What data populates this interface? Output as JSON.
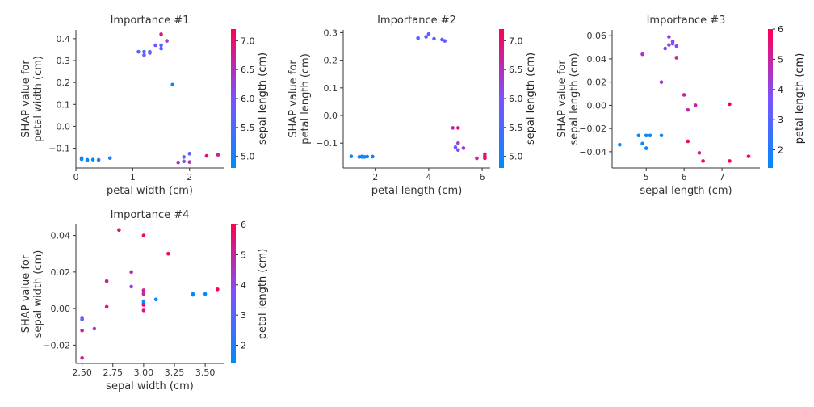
{
  "colors": {
    "low": "#008bfb",
    "mid": "#7c52ff",
    "high": "#ff0052",
    "axis": "#333333"
  },
  "chart_data": [
    {
      "type": "scatter",
      "title": "Importance #1",
      "xlabel": "petal width (cm)",
      "ylabel": [
        "SHAP value for",
        "petal width (cm)"
      ],
      "xlim": [
        0,
        2.6
      ],
      "ylim": [
        -0.19,
        0.44
      ],
      "xticks": [
        0,
        1,
        2
      ],
      "xtick_labels": [
        "0",
        "1",
        "2"
      ],
      "yticks": [
        -0.1,
        0.0,
        0.1,
        0.2,
        0.3,
        0.4
      ],
      "ytick_labels": [
        "−0.1",
        "0.0",
        "0.1",
        "0.2",
        "0.3",
        "0.4"
      ],
      "color_label": "sepal length (cm)",
      "color_range": [
        4.8,
        7.2
      ],
      "cticks": [
        5.0,
        5.5,
        6.0,
        6.5,
        7.0
      ],
      "ctick_labels": [
        "5.0",
        "5.5",
        "6.0",
        "6.5",
        "7.0"
      ],
      "points": [
        {
          "x": 0.1,
          "y": -0.145,
          "c": 4.9
        },
        {
          "x": 0.1,
          "y": -0.15,
          "c": 5.0
        },
        {
          "x": 0.2,
          "y": -0.153,
          "c": 4.9
        },
        {
          "x": 0.2,
          "y": -0.155,
          "c": 5.0
        },
        {
          "x": 0.3,
          "y": -0.152,
          "c": 4.8
        },
        {
          "x": 0.4,
          "y": -0.153,
          "c": 5.0
        },
        {
          "x": 0.6,
          "y": -0.145,
          "c": 5.0
        },
        {
          "x": 1.1,
          "y": 0.34,
          "c": 5.6
        },
        {
          "x": 1.2,
          "y": 0.34,
          "c": 5.7
        },
        {
          "x": 1.2,
          "y": 0.325,
          "c": 5.8
        },
        {
          "x": 1.3,
          "y": 0.34,
          "c": 5.6
        },
        {
          "x": 1.3,
          "y": 0.335,
          "c": 5.7
        },
        {
          "x": 1.4,
          "y": 0.37,
          "c": 5.8
        },
        {
          "x": 1.5,
          "y": 0.37,
          "c": 5.7
        },
        {
          "x": 1.5,
          "y": 0.355,
          "c": 5.6
        },
        {
          "x": 1.5,
          "y": 0.42,
          "c": 6.9
        },
        {
          "x": 1.6,
          "y": 0.39,
          "c": 6.3
        },
        {
          "x": 1.7,
          "y": 0.19,
          "c": 4.9
        },
        {
          "x": 1.8,
          "y": -0.165,
          "c": 6.4
        },
        {
          "x": 1.9,
          "y": -0.14,
          "c": 5.8
        },
        {
          "x": 1.9,
          "y": -0.16,
          "c": 6.0
        },
        {
          "x": 2.0,
          "y": -0.125,
          "c": 5.7
        },
        {
          "x": 2.0,
          "y": -0.163,
          "c": 6.5
        },
        {
          "x": 2.3,
          "y": -0.135,
          "c": 6.9
        },
        {
          "x": 2.5,
          "y": -0.13,
          "c": 6.7
        }
      ]
    },
    {
      "type": "scatter",
      "title": "Importance #2",
      "xlabel": "petal length (cm)",
      "ylabel": [
        "SHAP value for",
        "petal length (cm)"
      ],
      "xlim": [
        0.8,
        6.3
      ],
      "ylim": [
        -0.19,
        0.31
      ],
      "xticks": [
        2,
        4,
        6
      ],
      "xtick_labels": [
        "2",
        "4",
        "6"
      ],
      "yticks": [
        -0.1,
        0.0,
        0.1,
        0.2,
        0.3
      ],
      "ytick_labels": [
        "−0.1",
        "0.0",
        "0.1",
        "0.2",
        "0.3"
      ],
      "color_label": "sepal length (cm)",
      "color_range": [
        4.8,
        7.2
      ],
      "cticks": [
        5.0,
        5.5,
        6.0,
        6.5,
        7.0
      ],
      "ctick_labels": [
        "5.0",
        "5.5",
        "6.0",
        "6.5",
        "7.0"
      ],
      "points": [
        {
          "x": 1.1,
          "y": -0.148,
          "c": 4.9
        },
        {
          "x": 1.4,
          "y": -0.15,
          "c": 5.0
        },
        {
          "x": 1.5,
          "y": -0.148,
          "c": 4.9
        },
        {
          "x": 1.6,
          "y": -0.15,
          "c": 5.0
        },
        {
          "x": 1.5,
          "y": -0.15,
          "c": 5.0
        },
        {
          "x": 1.7,
          "y": -0.149,
          "c": 4.8
        },
        {
          "x": 1.9,
          "y": -0.149,
          "c": 5.0
        },
        {
          "x": 3.6,
          "y": 0.28,
          "c": 5.6
        },
        {
          "x": 3.9,
          "y": 0.285,
          "c": 5.7
        },
        {
          "x": 4.0,
          "y": 0.295,
          "c": 5.8
        },
        {
          "x": 4.2,
          "y": 0.278,
          "c": 5.7
        },
        {
          "x": 4.5,
          "y": 0.275,
          "c": 5.6
        },
        {
          "x": 4.6,
          "y": 0.27,
          "c": 5.8
        },
        {
          "x": 4.9,
          "y": -0.045,
          "c": 6.6
        },
        {
          "x": 5.0,
          "y": -0.115,
          "c": 5.8
        },
        {
          "x": 5.1,
          "y": -0.045,
          "c": 6.9
        },
        {
          "x": 5.1,
          "y": -0.125,
          "c": 5.9
        },
        {
          "x": 5.1,
          "y": -0.1,
          "c": 6.3
        },
        {
          "x": 5.3,
          "y": -0.118,
          "c": 6.4
        },
        {
          "x": 5.8,
          "y": -0.155,
          "c": 6.7
        },
        {
          "x": 6.1,
          "y": -0.148,
          "c": 7.1
        },
        {
          "x": 6.1,
          "y": -0.14,
          "c": 6.9
        },
        {
          "x": 6.1,
          "y": -0.155,
          "c": 7.0
        }
      ]
    },
    {
      "type": "scatter",
      "title": "Importance #3",
      "xlabel": "sepal length (cm)",
      "ylabel": [
        "SHAP value for",
        "sepal length (cm)"
      ],
      "xlim": [
        4.1,
        8.0
      ],
      "ylim": [
        -0.054,
        0.065
      ],
      "xticks": [
        5,
        6,
        7
      ],
      "xtick_labels": [
        "5",
        "6",
        "7"
      ],
      "yticks": [
        -0.04,
        -0.02,
        0.0,
        0.02,
        0.04,
        0.06
      ],
      "ytick_labels": [
        "−0.04",
        "−0.02",
        "0.00",
        "0.02",
        "0.04",
        "0.06"
      ],
      "color_label": "petal length (cm)",
      "color_range": [
        1.4,
        6.0
      ],
      "cticks": [
        2,
        3,
        4,
        5,
        6
      ],
      "ctick_labels": [
        "2",
        "3",
        "4",
        "5",
        "6"
      ],
      "points": [
        {
          "x": 4.3,
          "y": -0.034,
          "c": 1.1
        },
        {
          "x": 4.8,
          "y": -0.026,
          "c": 1.6
        },
        {
          "x": 4.9,
          "y": -0.033,
          "c": 1.5
        },
        {
          "x": 5.0,
          "y": -0.026,
          "c": 1.4
        },
        {
          "x": 5.0,
          "y": -0.037,
          "c": 1.6
        },
        {
          "x": 5.1,
          "y": -0.026,
          "c": 1.5
        },
        {
          "x": 5.4,
          "y": -0.026,
          "c": 1.7
        },
        {
          "x": 4.9,
          "y": 0.044,
          "c": 4.5
        },
        {
          "x": 5.4,
          "y": 0.02,
          "c": 4.5
        },
        {
          "x": 5.5,
          "y": 0.049,
          "c": 4.0
        },
        {
          "x": 5.6,
          "y": 0.052,
          "c": 3.9
        },
        {
          "x": 5.6,
          "y": 0.059,
          "c": 4.2
        },
        {
          "x": 5.7,
          "y": 0.055,
          "c": 4.1
        },
        {
          "x": 5.7,
          "y": 0.053,
          "c": 3.6
        },
        {
          "x": 5.8,
          "y": 0.051,
          "c": 4.0
        },
        {
          "x": 5.8,
          "y": 0.041,
          "c": 5.1
        },
        {
          "x": 6.0,
          "y": 0.009,
          "c": 5.0
        },
        {
          "x": 6.1,
          "y": -0.004,
          "c": 4.7
        },
        {
          "x": 6.1,
          "y": -0.031,
          "c": 5.6
        },
        {
          "x": 6.3,
          "y": 0.0,
          "c": 4.9
        },
        {
          "x": 6.4,
          "y": -0.041,
          "c": 5.3
        },
        {
          "x": 6.5,
          "y": -0.048,
          "c": 5.8
        },
        {
          "x": 7.2,
          "y": 0.001,
          "c": 6.0
        },
        {
          "x": 7.2,
          "y": -0.048,
          "c": 6.1
        },
        {
          "x": 7.7,
          "y": -0.044,
          "c": 6.7
        }
      ]
    },
    {
      "type": "scatter",
      "title": "Importance #4",
      "xlabel": "sepal width (cm)",
      "ylabel": [
        "SHAP value for",
        "sepal width (cm)"
      ],
      "xlim": [
        2.45,
        3.65
      ],
      "ylim": [
        -0.03,
        0.046
      ],
      "xticks": [
        2.5,
        2.75,
        3.0,
        3.25,
        3.5
      ],
      "xtick_labels": [
        "2.50",
        "2.75",
        "3.00",
        "3.25",
        "3.50"
      ],
      "yticks": [
        -0.02,
        0.0,
        0.02,
        0.04
      ],
      "ytick_labels": [
        "−0.02",
        "0.00",
        "0.02",
        "0.04"
      ],
      "color_label": "petal length (cm)",
      "color_range": [
        1.4,
        6.0
      ],
      "cticks": [
        2,
        3,
        4,
        5,
        6
      ],
      "ctick_labels": [
        "2",
        "3",
        "4",
        "5",
        "6"
      ],
      "points": [
        {
          "x": 2.5,
          "y": -0.027,
          "c": 5.0
        },
        {
          "x": 2.5,
          "y": -0.012,
          "c": 5.1
        },
        {
          "x": 2.5,
          "y": -0.005,
          "c": 3.9
        },
        {
          "x": 2.5,
          "y": -0.006,
          "c": 3.0
        },
        {
          "x": 2.6,
          "y": -0.011,
          "c": 4.4
        },
        {
          "x": 2.7,
          "y": 0.015,
          "c": 5.1
        },
        {
          "x": 2.7,
          "y": 0.001,
          "c": 5.3
        },
        {
          "x": 2.8,
          "y": 0.043,
          "c": 5.6
        },
        {
          "x": 2.9,
          "y": 0.02,
          "c": 4.7
        },
        {
          "x": 2.9,
          "y": 0.012,
          "c": 4.2
        },
        {
          "x": 3.0,
          "y": 0.04,
          "c": 5.8
        },
        {
          "x": 3.0,
          "y": 0.01,
          "c": 5.2
        },
        {
          "x": 3.0,
          "y": 0.009,
          "c": 4.8
        },
        {
          "x": 3.0,
          "y": 0.008,
          "c": 5.0
        },
        {
          "x": 3.0,
          "y": 0.003,
          "c": 1.4
        },
        {
          "x": 3.0,
          "y": 0.004,
          "c": 1.5
        },
        {
          "x": 3.0,
          "y": 0.002,
          "c": 5.5
        },
        {
          "x": 3.0,
          "y": -0.001,
          "c": 5.5
        },
        {
          "x": 3.1,
          "y": 0.005,
          "c": 1.5
        },
        {
          "x": 3.2,
          "y": 0.03,
          "c": 5.9
        },
        {
          "x": 3.4,
          "y": 0.008,
          "c": 1.6
        },
        {
          "x": 3.4,
          "y": 0.0075,
          "c": 1.5
        },
        {
          "x": 3.5,
          "y": 0.008,
          "c": 1.4
        },
        {
          "x": 3.6,
          "y": 0.0105,
          "c": 6.1
        }
      ]
    }
  ]
}
